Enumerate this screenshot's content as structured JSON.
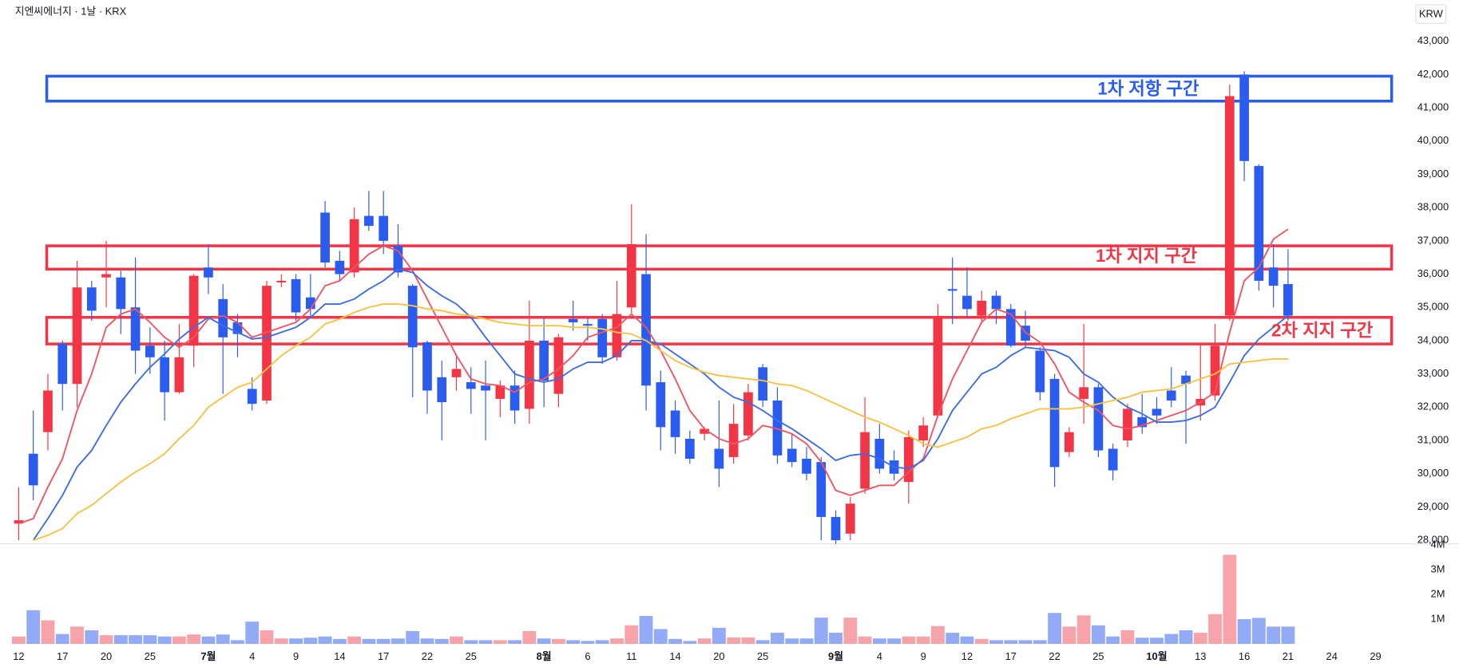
{
  "chart_data": {
    "type": "candlestick",
    "title": "지엔씨에너지 · 1날 · KRX",
    "currency": "KRW",
    "categories": [
      "12",
      null,
      null,
      "17",
      null,
      null,
      "20",
      null,
      null,
      "25",
      null,
      null,
      null,
      "7월",
      null,
      null,
      "4",
      null,
      null,
      "9",
      null,
      null,
      "14",
      null,
      null,
      "17",
      null,
      null,
      "22",
      null,
      null,
      "25",
      null,
      null,
      null,
      null,
      "8월",
      null,
      null,
      "6",
      null,
      null,
      "11",
      null,
      null,
      "14",
      null,
      null,
      "20",
      null,
      null,
      "25",
      null,
      null,
      null,
      null,
      "9월",
      null,
      null,
      "4",
      null,
      null,
      "9",
      null,
      null,
      "12",
      null,
      null,
      "17",
      null,
      null,
      "22",
      null,
      null,
      "25",
      null,
      null,
      null,
      "10월",
      null,
      null,
      "13",
      null,
      null,
      "16",
      null,
      null,
      "21",
      null,
      null,
      "24",
      null,
      null,
      "29"
    ],
    "open": [
      28500,
      30600,
      31250,
      33900,
      32700,
      35600,
      35900,
      35900,
      35000,
      33850,
      33500,
      32450,
      33850,
      36200,
      35250,
      34550,
      32550,
      32200,
      35750,
      35850,
      35300,
      37850,
      36400,
      36050,
      37750,
      37750,
      36850,
      35650,
      33950,
      32900,
      32900,
      32750,
      32650,
      32250,
      32650,
      31950,
      34000,
      32400,
      34650,
      34500,
      34650,
      33500,
      35000,
      36000,
      32750,
      31900,
      31050,
      31200,
      30750,
      30500,
      31150,
      33200,
      32200,
      30750,
      30450,
      30350,
      28700,
      28200,
      29550,
      31050,
      30400,
      29750,
      31000,
      31750,
      35550,
      35350,
      34750,
      35350,
      34950,
      34450,
      33700,
      32850,
      30650,
      32250,
      32600,
      30750,
      31000,
      31700,
      31950,
      32500,
      32950,
      32050,
      32350,
      34750,
      42000,
      39250,
      36200,
      35700,
      null,
      null,
      null,
      null,
      null,
      null
    ],
    "high": [
      29600,
      31900,
      33000,
      34000,
      36400,
      35800,
      37000,
      36100,
      36500,
      34400,
      34000,
      34500,
      36000,
      36900,
      35700,
      34800,
      32900,
      35800,
      36000,
      36000,
      36000,
      38200,
      36700,
      38000,
      38500,
      38500,
      37500,
      35700,
      34000,
      33400,
      33600,
      33200,
      33400,
      32800,
      33100,
      35200,
      34700,
      34200,
      35200,
      34700,
      34800,
      35800,
      38100,
      37200,
      33100,
      32200,
      31300,
      31400,
      32200,
      32100,
      32700,
      33300,
      32600,
      31200,
      30800,
      30500,
      28900,
      29300,
      32300,
      31500,
      30700,
      31300,
      31700,
      35100,
      36500,
      36200,
      35500,
      35500,
      35100,
      34900,
      33800,
      33000,
      31400,
      34500,
      32700,
      30900,
      32100,
      32400,
      32300,
      33200,
      33100,
      33900,
      34500,
      41700,
      42100,
      39300,
      36900,
      36750,
      null,
      null,
      null,
      null,
      null,
      null
    ],
    "low": [
      28000,
      29200,
      30700,
      31900,
      32000,
      34600,
      35000,
      34200,
      33000,
      33000,
      31600,
      32400,
      33200,
      35400,
      32400,
      33500,
      31900,
      32100,
      35600,
      34600,
      34700,
      36200,
      35800,
      35900,
      37300,
      36600,
      35900,
      32300,
      31800,
      31000,
      32500,
      31800,
      31000,
      31700,
      31500,
      31500,
      32000,
      32000,
      34300,
      34000,
      33300,
      33400,
      34800,
      31900,
      30700,
      30600,
      30300,
      31000,
      29600,
      30300,
      31000,
      32000,
      30300,
      30200,
      29800,
      28000,
      27800,
      28000,
      29400,
      30000,
      29800,
      29100,
      30800,
      31700,
      34500,
      34700,
      34500,
      34500,
      33800,
      33800,
      32200,
      29600,
      30500,
      31500,
      30500,
      29800,
      30800,
      31200,
      31500,
      32000,
      30900,
      31600,
      32200,
      34600,
      38800,
      35500,
      35000,
      34600,
      null,
      null,
      null,
      null,
      null,
      null
    ],
    "close": [
      28600,
      29650,
      32500,
      32700,
      35600,
      34900,
      36000,
      34950,
      33700,
      33500,
      32450,
      33500,
      35950,
      35900,
      34100,
      34200,
      32100,
      35650,
      35800,
      34850,
      34950,
      36350,
      36000,
      37650,
      37450,
      37000,
      36050,
      33800,
      32500,
      32150,
      33150,
      32550,
      32500,
      32650,
      31900,
      34000,
      32800,
      34100,
      34550,
      34450,
      33500,
      34800,
      36900,
      32650,
      31400,
      31100,
      30450,
      31350,
      30150,
      31500,
      32450,
      32200,
      30550,
      30350,
      30000,
      28700,
      28000,
      29100,
      31250,
      30150,
      30000,
      31100,
      31450,
      34700,
      35500,
      34950,
      35200,
      34950,
      33850,
      34000,
      32450,
      30200,
      31250,
      32600,
      30700,
      30100,
      31950,
      31400,
      31750,
      32200,
      32700,
      32250,
      33850,
      41350,
      39400,
      35800,
      35650,
      34750,
      null,
      null,
      null,
      null,
      null,
      null
    ],
    "volume": [
      300000,
      1360000,
      950000,
      400000,
      700000,
      550000,
      350000,
      350000,
      350000,
      350000,
      300000,
      300000,
      380000,
      300000,
      380000,
      150000,
      900000,
      550000,
      220000,
      220000,
      250000,
      300000,
      200000,
      300000,
      200000,
      200000,
      220000,
      520000,
      220000,
      200000,
      300000,
      150000,
      150000,
      150000,
      150000,
      520000,
      220000,
      200000,
      150000,
      120000,
      150000,
      220000,
      750000,
      1130000,
      600000,
      200000,
      120000,
      220000,
      650000,
      260000,
      260000,
      150000,
      450000,
      220000,
      220000,
      1060000,
      450000,
      1060000,
      300000,
      220000,
      220000,
      300000,
      300000,
      720000,
      450000,
      300000,
      200000,
      150000,
      150000,
      150000,
      150000,
      1250000,
      700000,
      1150000,
      750000,
      300000,
      550000,
      250000,
      250000,
      400000,
      550000,
      450000,
      1200000,
      3600000,
      1000000,
      1050000,
      700000,
      700000,
      null,
      null,
      null,
      null,
      null,
      null
    ],
    "up_color": "#f23645",
    "down_color": "#2b5cf0",
    "volume_up_color": "#f7a3aa",
    "volume_down_color": "#93abf6",
    "lines": [
      {
        "color": "#ef5565",
        "values": [
          28500,
          28650,
          29600,
          30450,
          31900,
          33000,
          34400,
          34800,
          34950,
          34550,
          34100,
          33800,
          34100,
          34650,
          34750,
          34550,
          34100,
          34250,
          34400,
          34550,
          34950,
          35650,
          35800,
          36200,
          36600,
          36850,
          36700,
          36100,
          35250,
          34400,
          33550,
          32850,
          32700,
          32650,
          32450,
          32750,
          32850,
          33150,
          33550,
          34100,
          34250,
          34400,
          34800,
          34400,
          33700,
          32850,
          31900,
          31350,
          31050,
          30900,
          31050,
          31450,
          31350,
          31200,
          30900,
          30350,
          29500,
          29350,
          29500,
          29650,
          29650,
          30050,
          30450,
          31750,
          32850,
          33700,
          34550,
          34950,
          34800,
          34250,
          33950,
          33300,
          32450,
          32150,
          31900,
          31450,
          31350,
          31450,
          31600,
          31750,
          31900,
          32150,
          32450,
          34250,
          35800,
          36200,
          37050,
          37350,
          null,
          null,
          null,
          null,
          null,
          null
        ]
      },
      {
        "color": "#3e6ce6",
        "values": [
          null,
          28000,
          28650,
          29350,
          30200,
          30700,
          31450,
          32150,
          32700,
          33200,
          33600,
          34050,
          34400,
          34700,
          34450,
          34250,
          34050,
          34100,
          34250,
          34400,
          34700,
          35100,
          35100,
          35250,
          35550,
          35800,
          36150,
          36050,
          35650,
          35350,
          35100,
          34700,
          34100,
          33550,
          33000,
          32850,
          32750,
          32850,
          33150,
          33350,
          33350,
          33550,
          34000,
          34000,
          33900,
          33600,
          33300,
          33000,
          32600,
          32300,
          32150,
          31900,
          31600,
          31350,
          31050,
          30750,
          30400,
          30550,
          30600,
          30450,
          30200,
          30150,
          30400,
          31050,
          31900,
          32450,
          33000,
          33200,
          33550,
          33800,
          33750,
          33700,
          33500,
          33000,
          32750,
          32300,
          32000,
          31800,
          31550,
          31550,
          31600,
          31750,
          32000,
          32750,
          33550,
          34050,
          34400,
          34750,
          null,
          null,
          null,
          null,
          null,
          null
        ]
      },
      {
        "color": "#f6c245",
        "values": [
          null,
          28000,
          28150,
          28350,
          28800,
          29050,
          29400,
          29750,
          30050,
          30300,
          30600,
          31050,
          31450,
          32000,
          32300,
          32600,
          32750,
          33150,
          33550,
          33850,
          34100,
          34500,
          34650,
          34850,
          35000,
          35100,
          35100,
          35050,
          34950,
          34900,
          34800,
          34750,
          34650,
          34550,
          34500,
          34450,
          34450,
          34450,
          34400,
          34400,
          34350,
          34250,
          34200,
          34000,
          33700,
          33400,
          33200,
          33050,
          32950,
          32900,
          32850,
          32800,
          32700,
          32650,
          32500,
          32300,
          32100,
          31900,
          31700,
          31550,
          31350,
          31150,
          30900,
          30800,
          30950,
          31100,
          31350,
          31450,
          31650,
          31800,
          31950,
          31950,
          31950,
          32000,
          32100,
          32200,
          32300,
          32450,
          32500,
          32550,
          32700,
          32850,
          33000,
          33300,
          33350,
          33400,
          33450,
          33450,
          null,
          null,
          null,
          null,
          null,
          null
        ]
      }
    ],
    "zones": [
      {
        "label": "1차 저항 구간",
        "low": 41200,
        "high": 41950,
        "color": "#2b5cf0"
      },
      {
        "label": "1차 지지 구간",
        "low": 36150,
        "high": 36850,
        "color": "#f23645"
      },
      {
        "label": "2차 지지 구간",
        "low": 33900,
        "high": 34700,
        "color": "#f23645"
      }
    ],
    "ylim": [
      27890,
      44240
    ],
    "yticks": [
      {
        "value": 28000,
        "label": "28,000"
      },
      {
        "value": 29000,
        "label": "29,000"
      },
      {
        "value": 30000,
        "label": "30,000"
      },
      {
        "value": 31000,
        "label": "31,000"
      },
      {
        "value": 32000,
        "label": "32,000"
      },
      {
        "value": 33000,
        "label": "33,000"
      },
      {
        "value": 34000,
        "label": "34,000"
      },
      {
        "value": 35000,
        "label": "35,000"
      },
      {
        "value": 36000,
        "label": "36,000"
      },
      {
        "value": 37000,
        "label": "37,000"
      },
      {
        "value": 38000,
        "label": "38,000"
      },
      {
        "value": 39000,
        "label": "39,000"
      },
      {
        "value": 40000,
        "label": "40,000"
      },
      {
        "value": 41000,
        "label": "41,000"
      },
      {
        "value": 42000,
        "label": "42,000"
      },
      {
        "value": 43000,
        "label": "43,000"
      }
    ],
    "volume_ylim": [
      0,
      4000000
    ],
    "volume_yticks": [
      {
        "value": 1000000,
        "label": "1M"
      },
      {
        "value": 2000000,
        "label": "2M"
      },
      {
        "value": 3000000,
        "label": "3M"
      },
      {
        "value": 4000000,
        "label": "4M"
      }
    ],
    "grid": false
  }
}
